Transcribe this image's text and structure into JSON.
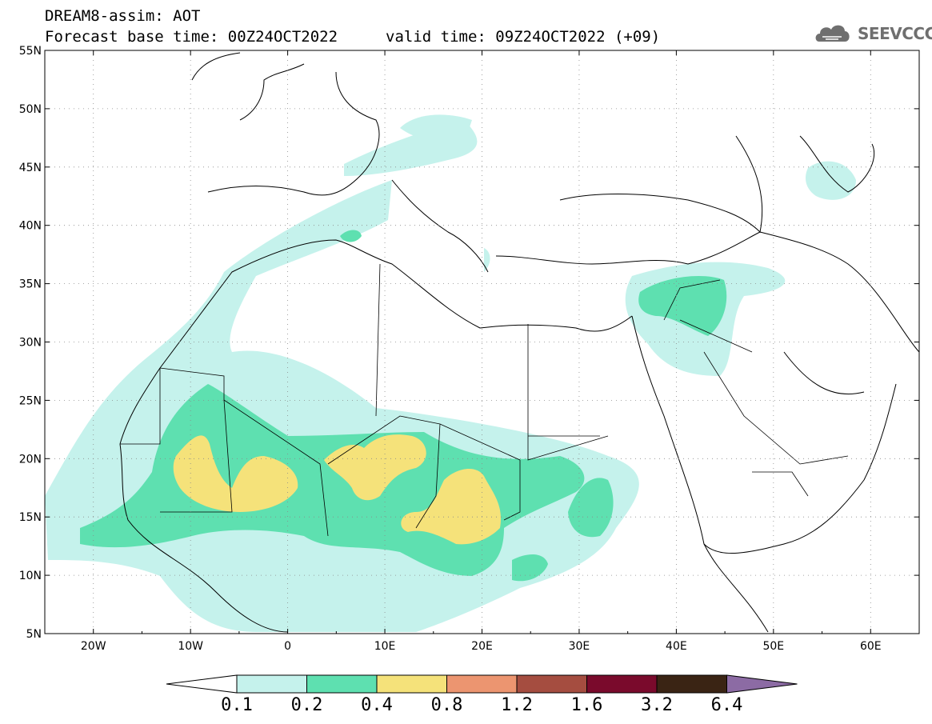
{
  "header": {
    "title": "DREAM8-assim: AOT",
    "forecast_base": "Forecast base time: 00Z24OCT2022",
    "valid_time": "valid time: 09Z24OCT2022 (+09)",
    "logo_text": "SEEVCCC"
  },
  "map": {
    "lon_range": [
      -25,
      65
    ],
    "lat_range": [
      5,
      55
    ],
    "lon_ticks": [
      "20W",
      "10W",
      "0",
      "10E",
      "20E",
      "30E",
      "40E",
      "50E",
      "60E"
    ],
    "lat_ticks": [
      "55N",
      "50N",
      "45N",
      "40N",
      "35N",
      "30N",
      "25N",
      "20N",
      "15N",
      "10N",
      "5N"
    ]
  },
  "colorbar": {
    "labels": [
      "0.1",
      "0.2",
      "0.4",
      "0.8",
      "1.2",
      "1.6",
      "3.2",
      "6.4"
    ],
    "colors": [
      "#ffffff",
      "#c5f2ec",
      "#5ee0b0",
      "#f5e27a",
      "#ec9570",
      "#a54d40",
      "#7a0a2c",
      "#3a2414",
      "#8c6ba4"
    ]
  }
}
